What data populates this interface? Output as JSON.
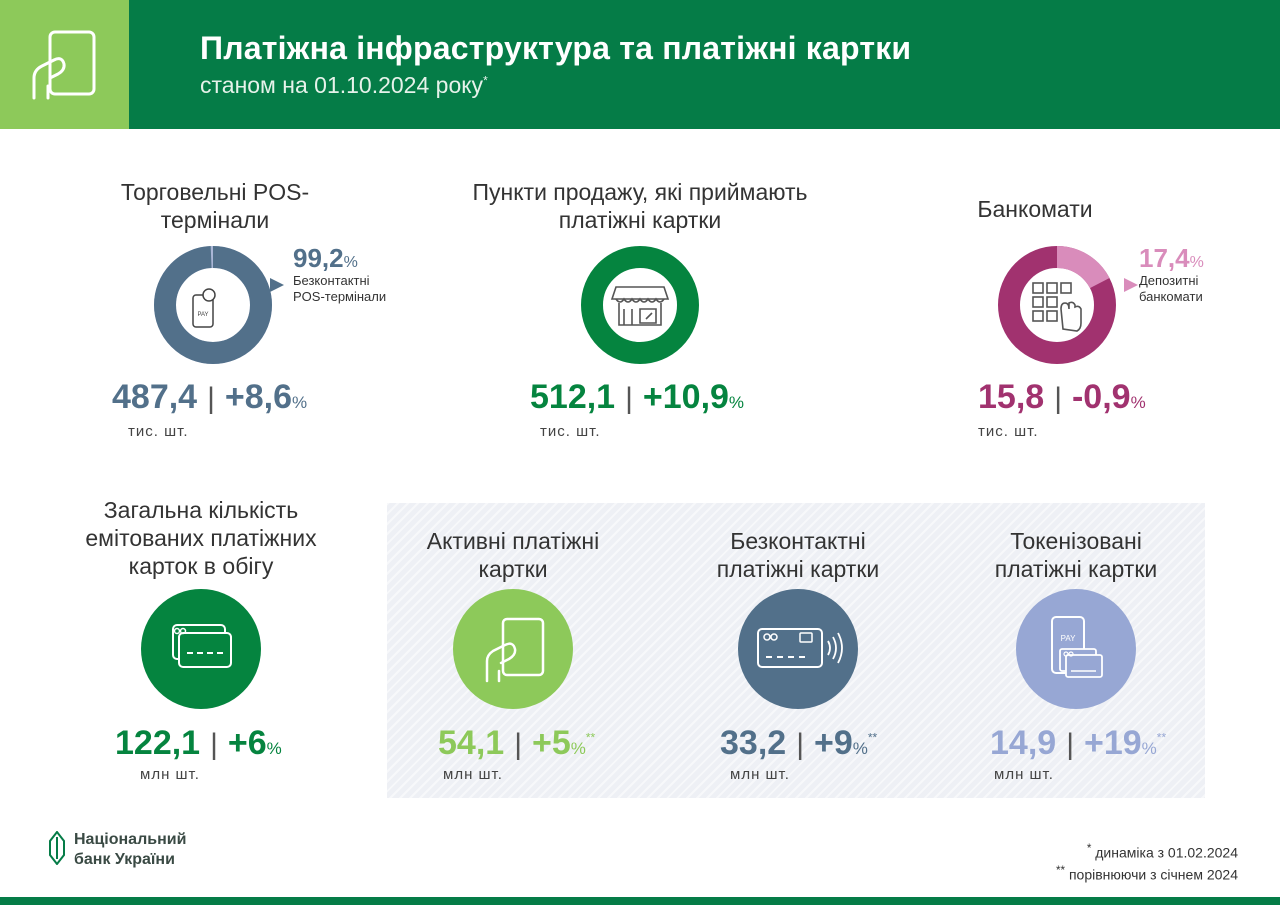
{
  "header": {
    "title": "Платіжна інфраструктура та платіжні картки",
    "subtitle": "станом на 01.10.2024 року",
    "subtitle_mark": "*",
    "icon": "card-in-hand-icon",
    "colors": {
      "bar": "#057c47",
      "icon_box": "#8dc95a"
    }
  },
  "pos": {
    "label": "Торговельні POS-термінали",
    "share_value": "99,2",
    "share_unit": "%",
    "share_label": "Безконтактні POS-термінали",
    "share_fraction": 0.992,
    "value": "487,4",
    "sep": "|",
    "change": "+8,6",
    "change_unit": "%",
    "unit": "тис. шт.",
    "icon": "pay-terminal-icon",
    "color": "#52708a"
  },
  "merchants": {
    "label": "Пункти продажу, які приймають платіжні картки",
    "value": "512,1",
    "sep": "|",
    "change": "+10,9",
    "change_unit": "%",
    "unit": "тис. шт.",
    "icon": "shop-icon",
    "color": "#05843f"
  },
  "atm": {
    "label": "Банкомати",
    "share_value": "17,4",
    "share_unit": "%",
    "share_label": "Депозитні банкомати",
    "share_fraction": 0.174,
    "value": "15,8",
    "sep": "|",
    "change": "-0,9",
    "change_unit": "%",
    "unit": "тис. шт.",
    "icon": "atm-keypad-icon",
    "color": "#a1326f",
    "color_light": "#d98cbb"
  },
  "total_cards": {
    "label": "Загальна кількість емітованих платіжних карток в обігу",
    "value": "122,1",
    "sep": "|",
    "change": "+6",
    "change_unit": "%",
    "unit": "млн шт.",
    "icon": "cards-icon",
    "color": "#05843f"
  },
  "active_cards": {
    "label": "Активні платіжні картки",
    "value": "54,1",
    "sep": "|",
    "change": "+5",
    "change_unit": "%",
    "mark": "**",
    "unit": "млн шт.",
    "icon": "card-in-hand-icon",
    "color": "#8dc95a"
  },
  "contactless_cards": {
    "label": "Безконтактні платіжні картки",
    "value": "33,2",
    "sep": "|",
    "change": "+9",
    "change_unit": "%",
    "mark": "**",
    "unit": "млн шт.",
    "icon": "contactless-card-icon",
    "color": "#52708a"
  },
  "tokenized_cards": {
    "label": "Токенізовані платіжні картки",
    "value": "14,9",
    "sep": "|",
    "change": "+19",
    "change_unit": "%",
    "mark": "**",
    "unit": "млн шт.",
    "icon": "phone-pay-cards-icon",
    "color": "#97a7d4"
  },
  "footer": {
    "logo_line1": "Національний",
    "logo_line2": "банк України",
    "logo_icon": "nbu-logo-icon",
    "note1_mark": "*",
    "note1": "динаміка з 01.02.2024",
    "note2_mark": "**",
    "note2": "порівнюючи з січнем 2024"
  }
}
